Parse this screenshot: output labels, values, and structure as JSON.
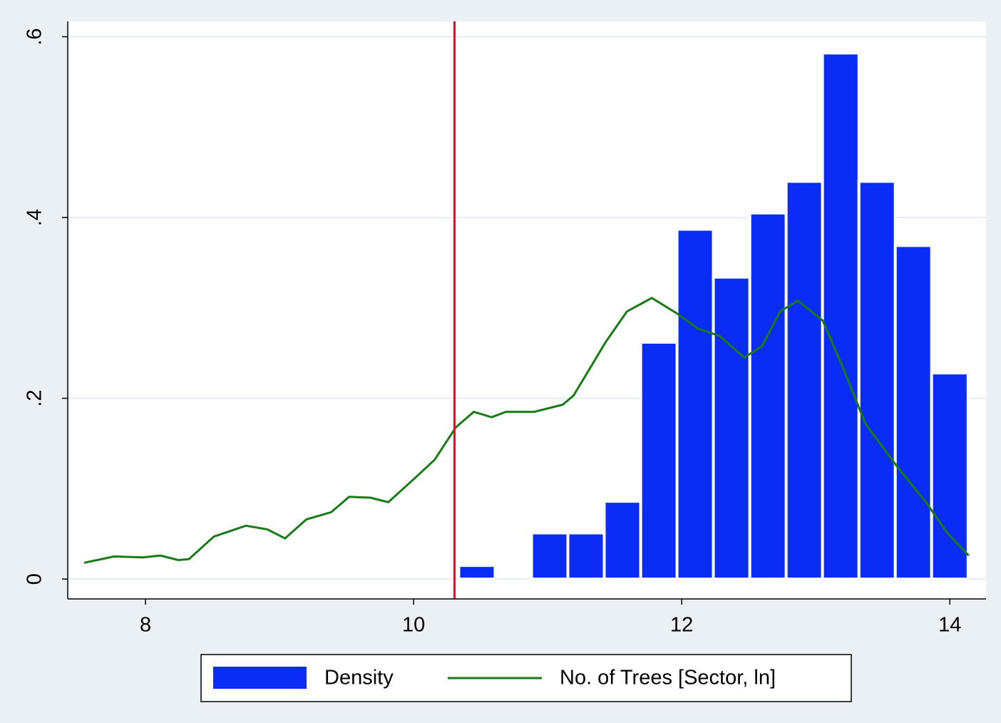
{
  "chart_data": {
    "type": "histogram",
    "xlim": [
      7.42,
      14.27
    ],
    "ylim": [
      -0.022,
      0.617
    ],
    "xticks": [
      8,
      10,
      12,
      14
    ],
    "yticks": [
      0,
      {
        "value": 0.2,
        "label": ".2"
      },
      {
        "value": 0.4,
        "label": ".4"
      },
      {
        "value": 0.6,
        "label": ".6"
      }
    ],
    "grid": true,
    "reference_line": {
      "x": 10.305,
      "color": "#c0202a"
    },
    "series": [
      {
        "name": "Density",
        "type": "histogram",
        "color": "#0a2cf5",
        "bins": [
          10.337,
          10.608,
          10.88,
          11.151,
          11.422,
          11.694,
          11.965,
          12.236,
          12.508,
          12.779,
          13.05,
          13.322,
          13.593,
          13.864,
          14.136
        ],
        "values": [
          0.015,
          0,
          0.051,
          0.051,
          0.086,
          0.262,
          0.387,
          0.334,
          0.405,
          0.44,
          0.582,
          0.44,
          0.369,
          0.228
        ]
      },
      {
        "name": "No. of Trees [Sector, ln]",
        "type": "line",
        "color": "#1a7a1a",
        "x": [
          7.543,
          7.766,
          7.979,
          8.112,
          8.244,
          8.324,
          8.51,
          8.749,
          8.908,
          9.041,
          9.2,
          9.386,
          9.519,
          9.679,
          9.811,
          9.997,
          10.157,
          10.316,
          10.449,
          10.582,
          10.688,
          10.9,
          11.113,
          11.193,
          11.432,
          11.591,
          11.777,
          11.963,
          12.122,
          12.282,
          12.467,
          12.6,
          12.733,
          12.866,
          13.052,
          13.211,
          13.37,
          13.609,
          13.822,
          13.981,
          14.141
        ],
        "values": [
          0.018,
          0.025,
          0.024,
          0.026,
          0.021,
          0.022,
          0.047,
          0.059,
          0.055,
          0.045,
          0.066,
          0.074,
          0.091,
          0.09,
          0.085,
          0.11,
          0.132,
          0.168,
          0.185,
          0.179,
          0.185,
          0.185,
          0.193,
          0.203,
          0.262,
          0.296,
          0.311,
          0.294,
          0.277,
          0.269,
          0.245,
          0.258,
          0.296,
          0.308,
          0.286,
          0.231,
          0.172,
          0.124,
          0.085,
          0.051,
          0.026
        ]
      }
    ]
  }
}
